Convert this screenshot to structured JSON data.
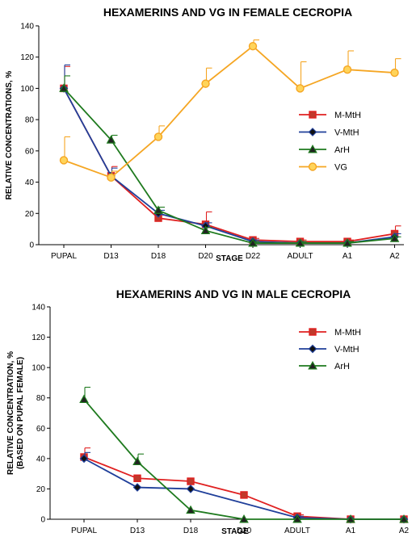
{
  "chart_data": [
    {
      "type": "line",
      "title": "HEXAMERINS AND VG IN FEMALE CECROPIA",
      "xlabel": "STAGE",
      "ylabel": [
        "RELATIVE CONCENTRATIONS, %"
      ],
      "categories": [
        "PUPAL",
        "D13",
        "D18",
        "D20",
        "D22",
        "ADULT",
        "A1",
        "A2"
      ],
      "ylim": [
        0,
        140
      ],
      "yticks": [
        0,
        20,
        40,
        60,
        80,
        100,
        120,
        140
      ],
      "legend": "right",
      "grid": false,
      "series": [
        {
          "name": "M-MtH",
          "color": "#e02020",
          "marker": "square",
          "values": [
            100,
            44,
            17,
            13,
            3,
            2,
            2,
            7
          ],
          "error": [
            14,
            6,
            2,
            8,
            1,
            1,
            1,
            5
          ]
        },
        {
          "name": "V-MtH",
          "color": "#1f3f9a",
          "marker": "diamond",
          "values": [
            100,
            44,
            20,
            12,
            2,
            1,
            1,
            5
          ],
          "error": [
            15,
            5,
            2,
            2,
            1,
            1,
            1,
            2
          ]
        },
        {
          "name": "ArH",
          "color": "#1e7a1e",
          "marker": "triangle",
          "values": [
            100,
            67,
            22,
            9,
            1,
            1,
            1,
            4
          ],
          "error": [
            8,
            3,
            2,
            2,
            1,
            1,
            1,
            1
          ]
        },
        {
          "name": "VG",
          "color": "#f5a623",
          "marker": "circle",
          "values": [
            54,
            43,
            69,
            103,
            127,
            100,
            112,
            110
          ],
          "error": [
            15,
            4,
            7,
            10,
            4,
            17,
            12,
            9
          ]
        }
      ]
    },
    {
      "type": "line",
      "title": "HEXAMERINS AND VG IN MALE CECROPIA",
      "xlabel": "STAGE",
      "ylabel": [
        "RELATIVE CONCENTRATION, %",
        "(BASED ON PUPAL FEMALE)"
      ],
      "categories": [
        "PUPAL",
        "D13",
        "D18",
        "D20",
        "ADULT",
        "A1",
        "A2"
      ],
      "ylim": [
        0,
        140
      ],
      "yticks": [
        0,
        20,
        40,
        60,
        80,
        100,
        120,
        140
      ],
      "legend": "top-right",
      "grid": false,
      "series": [
        {
          "name": "M-MtH",
          "color": "#e02020",
          "marker": "square",
          "values": [
            41,
            27,
            25,
            16,
            2,
            0,
            0
          ],
          "error": [
            6,
            0,
            0,
            0,
            1,
            0,
            0
          ]
        },
        {
          "name": "V-MtH",
          "color": "#1f3f9a",
          "marker": "diamond",
          "values": [
            40,
            21,
            20,
            null,
            1,
            0,
            0
          ],
          "error": [
            4,
            0,
            0,
            0,
            1,
            0,
            0
          ]
        },
        {
          "name": "ArH",
          "color": "#1e7a1e",
          "marker": "triangle",
          "values": [
            79,
            38,
            6,
            0,
            0,
            0,
            0
          ],
          "error": [
            8,
            5,
            0,
            0,
            0,
            0,
            0
          ]
        }
      ]
    }
  ]
}
